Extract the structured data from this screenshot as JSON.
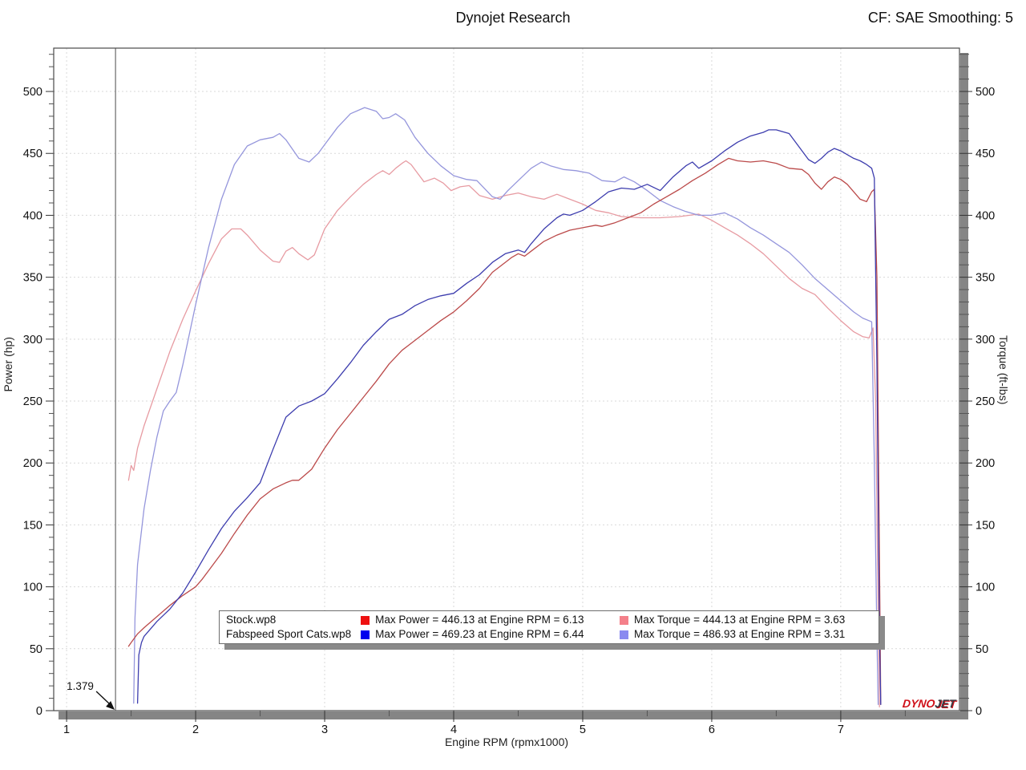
{
  "header": {
    "title": "Dynojet Research",
    "correction_factor": "CF: SAE Smoothing: 5"
  },
  "branding": {
    "dyno": "DYNO",
    "jet": "JET"
  },
  "chart_data": {
    "type": "line",
    "title": "Dynojet Research",
    "xlabel": "Engine RPM (rpmx1000)",
    "ylabel_left": "Power (hp)",
    "ylabel_right": "Torque (ft-lbs)",
    "xlim": [
      0.9,
      7.92
    ],
    "ylim": [
      0,
      535
    ],
    "x_ticks": [
      1,
      2,
      3,
      4,
      5,
      6,
      7
    ],
    "x_minor_step": 0.5,
    "y_ticks": [
      0,
      50,
      100,
      150,
      200,
      250,
      300,
      350,
      400,
      450,
      500
    ],
    "y_minor_step": 10,
    "grid": "dotted",
    "grid_color": "#d9d9d9",
    "frame_color": "#4a4a4a",
    "shadow_color": "#858585",
    "marker_line_x": 1.379,
    "marker_label": "1.379",
    "legend": {
      "rows": [
        {
          "name": "Stock.wp8",
          "power_swatch_color": "#ee1111",
          "power_text": "Max Power = 446.13 at Engine RPM = 6.13",
          "torque_swatch_color": "#f4808a",
          "torque_text": "Max Torque = 444.13 at Engine RPM = 3.63"
        },
        {
          "name": "Fabspeed Sport Cats.wp8",
          "power_swatch_color": "#0000ee",
          "power_text": "Max Power = 469.23 at Engine RPM = 6.44",
          "torque_swatch_color": "#8a8af0",
          "torque_text": "Max Torque = 486.93 at Engine RPM = 3.31"
        }
      ]
    },
    "series": [
      {
        "name": "Stock.wp8 Torque (ft-lbs)",
        "color": "#e79ba2",
        "max": {
          "value": 444.13,
          "rpm": 3.63
        },
        "points": [
          [
            1.48,
            186
          ],
          [
            1.5,
            198
          ],
          [
            1.52,
            194
          ],
          [
            1.55,
            212
          ],
          [
            1.6,
            230
          ],
          [
            1.7,
            260
          ],
          [
            1.8,
            290
          ],
          [
            1.9,
            316
          ],
          [
            2.0,
            339
          ],
          [
            2.1,
            361
          ],
          [
            2.2,
            381
          ],
          [
            2.28,
            389
          ],
          [
            2.35,
            389
          ],
          [
            2.4,
            384
          ],
          [
            2.5,
            372
          ],
          [
            2.6,
            363
          ],
          [
            2.65,
            362
          ],
          [
            2.7,
            371
          ],
          [
            2.75,
            374
          ],
          [
            2.8,
            369
          ],
          [
            2.87,
            364
          ],
          [
            2.92,
            368
          ],
          [
            3.0,
            389
          ],
          [
            3.1,
            404
          ],
          [
            3.2,
            415
          ],
          [
            3.3,
            425
          ],
          [
            3.4,
            433
          ],
          [
            3.45,
            436
          ],
          [
            3.5,
            433
          ],
          [
            3.55,
            438
          ],
          [
            3.6,
            442
          ],
          [
            3.63,
            444
          ],
          [
            3.67,
            441
          ],
          [
            3.72,
            434
          ],
          [
            3.77,
            427
          ],
          [
            3.85,
            430
          ],
          [
            3.92,
            426
          ],
          [
            3.98,
            420
          ],
          [
            4.05,
            423
          ],
          [
            4.12,
            424
          ],
          [
            4.2,
            416
          ],
          [
            4.3,
            413
          ],
          [
            4.4,
            416
          ],
          [
            4.5,
            418
          ],
          [
            4.6,
            415
          ],
          [
            4.7,
            413
          ],
          [
            4.8,
            417
          ],
          [
            4.9,
            413
          ],
          [
            5.0,
            409
          ],
          [
            5.1,
            404
          ],
          [
            5.2,
            402
          ],
          [
            5.3,
            399
          ],
          [
            5.45,
            398
          ],
          [
            5.6,
            398
          ],
          [
            5.75,
            399
          ],
          [
            5.9,
            401
          ],
          [
            6.0,
            396
          ],
          [
            6.1,
            390
          ],
          [
            6.2,
            384
          ],
          [
            6.3,
            377
          ],
          [
            6.4,
            369
          ],
          [
            6.5,
            359
          ],
          [
            6.6,
            349
          ],
          [
            6.7,
            341
          ],
          [
            6.8,
            336
          ],
          [
            6.9,
            325
          ],
          [
            7.0,
            315
          ],
          [
            7.1,
            306
          ],
          [
            7.17,
            302
          ],
          [
            7.22,
            301
          ],
          [
            7.25,
            309
          ],
          [
            7.27,
            250
          ],
          [
            7.29,
            80
          ],
          [
            7.3,
            3
          ]
        ]
      },
      {
        "name": "Fabspeed Sport Cats.wp8 Torque (ft-lbs)",
        "color": "#9596dc",
        "max": {
          "value": 486.93,
          "rpm": 3.31
        },
        "points": [
          [
            1.52,
            6
          ],
          [
            1.53,
            75
          ],
          [
            1.55,
            118
          ],
          [
            1.6,
            163
          ],
          [
            1.65,
            194
          ],
          [
            1.7,
            221
          ],
          [
            1.75,
            242
          ],
          [
            1.8,
            250
          ],
          [
            1.85,
            257
          ],
          [
            1.9,
            279
          ],
          [
            2.0,
            328
          ],
          [
            2.1,
            374
          ],
          [
            2.2,
            413
          ],
          [
            2.3,
            441
          ],
          [
            2.4,
            456
          ],
          [
            2.5,
            461
          ],
          [
            2.6,
            463
          ],
          [
            2.65,
            466
          ],
          [
            2.7,
            461
          ],
          [
            2.8,
            446
          ],
          [
            2.88,
            443
          ],
          [
            2.95,
            450
          ],
          [
            3.0,
            457
          ],
          [
            3.1,
            471
          ],
          [
            3.2,
            482
          ],
          [
            3.31,
            487
          ],
          [
            3.4,
            484
          ],
          [
            3.45,
            478
          ],
          [
            3.5,
            479
          ],
          [
            3.55,
            482
          ],
          [
            3.62,
            477
          ],
          [
            3.7,
            463
          ],
          [
            3.8,
            450
          ],
          [
            3.9,
            440
          ],
          [
            4.0,
            432
          ],
          [
            4.1,
            429
          ],
          [
            4.18,
            428
          ],
          [
            4.3,
            415
          ],
          [
            4.36,
            413
          ],
          [
            4.42,
            420
          ],
          [
            4.5,
            428
          ],
          [
            4.6,
            438
          ],
          [
            4.68,
            443
          ],
          [
            4.75,
            440
          ],
          [
            4.85,
            437
          ],
          [
            4.95,
            436
          ],
          [
            5.05,
            434
          ],
          [
            5.15,
            428
          ],
          [
            5.25,
            427
          ],
          [
            5.32,
            431
          ],
          [
            5.4,
            427
          ],
          [
            5.5,
            420
          ],
          [
            5.6,
            412
          ],
          [
            5.7,
            407
          ],
          [
            5.8,
            403
          ],
          [
            5.9,
            400
          ],
          [
            6.0,
            400
          ],
          [
            6.1,
            402
          ],
          [
            6.2,
            397
          ],
          [
            6.3,
            390
          ],
          [
            6.4,
            384
          ],
          [
            6.5,
            377
          ],
          [
            6.6,
            370
          ],
          [
            6.7,
            360
          ],
          [
            6.8,
            349
          ],
          [
            6.9,
            340
          ],
          [
            7.0,
            331
          ],
          [
            7.1,
            322
          ],
          [
            7.17,
            317
          ],
          [
            7.24,
            314
          ],
          [
            7.26,
            200
          ],
          [
            7.28,
            60
          ],
          [
            7.29,
            5
          ]
        ]
      },
      {
        "name": "Stock.wp8 Power (hp)",
        "color": "#bb4a4a",
        "max": {
          "value": 446.13,
          "rpm": 6.13
        },
        "points": [
          [
            1.48,
            52
          ],
          [
            1.5,
            55
          ],
          [
            1.55,
            62
          ],
          [
            1.6,
            67
          ],
          [
            1.7,
            76
          ],
          [
            1.8,
            85
          ],
          [
            1.9,
            93
          ],
          [
            2.0,
            100
          ],
          [
            2.05,
            106
          ],
          [
            2.1,
            113
          ],
          [
            2.2,
            127
          ],
          [
            2.3,
            143
          ],
          [
            2.4,
            158
          ],
          [
            2.5,
            171
          ],
          [
            2.6,
            179
          ],
          [
            2.7,
            184
          ],
          [
            2.75,
            186
          ],
          [
            2.8,
            186
          ],
          [
            2.9,
            195
          ],
          [
            3.0,
            212
          ],
          [
            3.1,
            227
          ],
          [
            3.2,
            240
          ],
          [
            3.3,
            253
          ],
          [
            3.4,
            266
          ],
          [
            3.5,
            280
          ],
          [
            3.6,
            291
          ],
          [
            3.7,
            299
          ],
          [
            3.8,
            307
          ],
          [
            3.9,
            315
          ],
          [
            4.0,
            322
          ],
          [
            4.1,
            331
          ],
          [
            4.2,
            341
          ],
          [
            4.3,
            354
          ],
          [
            4.4,
            362
          ],
          [
            4.45,
            366
          ],
          [
            4.5,
            369
          ],
          [
            4.55,
            367
          ],
          [
            4.6,
            371
          ],
          [
            4.7,
            379
          ],
          [
            4.8,
            384
          ],
          [
            4.9,
            388
          ],
          [
            5.0,
            390
          ],
          [
            5.1,
            392
          ],
          [
            5.15,
            391
          ],
          [
            5.25,
            394
          ],
          [
            5.35,
            398
          ],
          [
            5.45,
            402
          ],
          [
            5.55,
            409
          ],
          [
            5.65,
            415
          ],
          [
            5.75,
            421
          ],
          [
            5.85,
            428
          ],
          [
            5.95,
            434
          ],
          [
            6.05,
            441
          ],
          [
            6.13,
            446
          ],
          [
            6.2,
            444
          ],
          [
            6.3,
            443
          ],
          [
            6.4,
            444
          ],
          [
            6.5,
            442
          ],
          [
            6.6,
            438
          ],
          [
            6.7,
            437
          ],
          [
            6.75,
            433
          ],
          [
            6.8,
            426
          ],
          [
            6.85,
            421
          ],
          [
            6.9,
            427
          ],
          [
            6.95,
            431
          ],
          [
            7.0,
            429
          ],
          [
            7.05,
            425
          ],
          [
            7.1,
            419
          ],
          [
            7.15,
            413
          ],
          [
            7.2,
            411
          ],
          [
            7.24,
            419
          ],
          [
            7.26,
            421
          ],
          [
            7.28,
            350
          ],
          [
            7.3,
            120
          ],
          [
            7.31,
            5
          ]
        ]
      },
      {
        "name": "Fabspeed Sport Cats.wp8 Power (hp)",
        "color": "#3d3dae",
        "max": {
          "value": 469.23,
          "rpm": 6.44
        },
        "points": [
          [
            1.55,
            6
          ],
          [
            1.56,
            45
          ],
          [
            1.58,
            55
          ],
          [
            1.6,
            60
          ],
          [
            1.7,
            72
          ],
          [
            1.8,
            82
          ],
          [
            1.9,
            95
          ],
          [
            2.0,
            112
          ],
          [
            2.1,
            130
          ],
          [
            2.2,
            147
          ],
          [
            2.3,
            161
          ],
          [
            2.4,
            172
          ],
          [
            2.5,
            184
          ],
          [
            2.6,
            211
          ],
          [
            2.7,
            237
          ],
          [
            2.8,
            246
          ],
          [
            2.9,
            250
          ],
          [
            3.0,
            256
          ],
          [
            3.1,
            268
          ],
          [
            3.2,
            281
          ],
          [
            3.3,
            295
          ],
          [
            3.4,
            306
          ],
          [
            3.5,
            316
          ],
          [
            3.6,
            320
          ],
          [
            3.7,
            327
          ],
          [
            3.8,
            332
          ],
          [
            3.9,
            335
          ],
          [
            4.0,
            337
          ],
          [
            4.1,
            345
          ],
          [
            4.2,
            352
          ],
          [
            4.3,
            362
          ],
          [
            4.4,
            369
          ],
          [
            4.5,
            372
          ],
          [
            4.55,
            370
          ],
          [
            4.6,
            377
          ],
          [
            4.7,
            389
          ],
          [
            4.8,
            398
          ],
          [
            4.85,
            401
          ],
          [
            4.9,
            400
          ],
          [
            5.0,
            404
          ],
          [
            5.1,
            411
          ],
          [
            5.2,
            419
          ],
          [
            5.3,
            422
          ],
          [
            5.4,
            421
          ],
          [
            5.5,
            425
          ],
          [
            5.6,
            420
          ],
          [
            5.7,
            431
          ],
          [
            5.8,
            440
          ],
          [
            5.85,
            443
          ],
          [
            5.9,
            438
          ],
          [
            6.0,
            444
          ],
          [
            6.1,
            452
          ],
          [
            6.2,
            459
          ],
          [
            6.3,
            464
          ],
          [
            6.4,
            467
          ],
          [
            6.44,
            469
          ],
          [
            6.5,
            469
          ],
          [
            6.6,
            466
          ],
          [
            6.7,
            452
          ],
          [
            6.75,
            445
          ],
          [
            6.8,
            442
          ],
          [
            6.85,
            446
          ],
          [
            6.9,
            451
          ],
          [
            6.95,
            454
          ],
          [
            7.0,
            452
          ],
          [
            7.05,
            449
          ],
          [
            7.1,
            446
          ],
          [
            7.15,
            444
          ],
          [
            7.2,
            441
          ],
          [
            7.24,
            438
          ],
          [
            7.26,
            430
          ],
          [
            7.28,
            280
          ],
          [
            7.3,
            60
          ],
          [
            7.31,
            5
          ]
        ]
      }
    ]
  }
}
